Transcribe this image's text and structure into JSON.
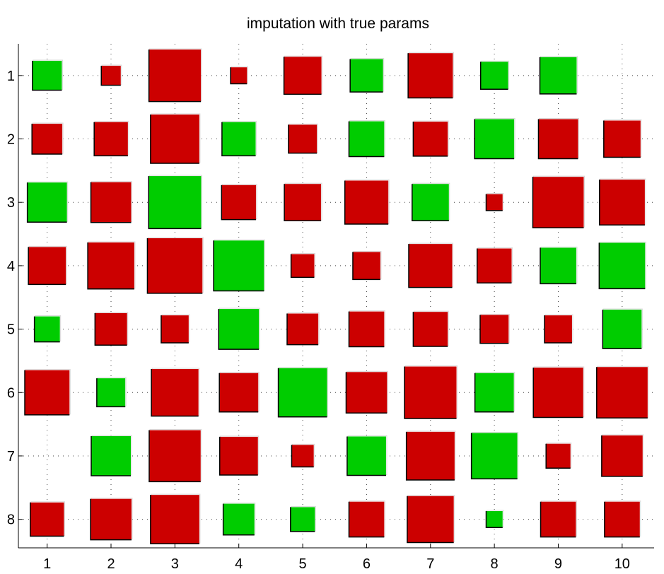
{
  "chart_data": {
    "type": "hinton",
    "title": "imputation with true params",
    "xlabel": "",
    "ylabel": "",
    "x_ticks": [
      "1",
      "2",
      "3",
      "4",
      "5",
      "6",
      "7",
      "8",
      "9",
      "10"
    ],
    "y_ticks": [
      "1",
      "2",
      "3",
      "4",
      "5",
      "6",
      "7",
      "8"
    ],
    "xlim": [
      0.55,
      10.5
    ],
    "ylim": [
      0.5,
      8.45
    ],
    "grid": true,
    "max_magnitude": 1.0,
    "sign_colors": {
      "positive": "#00cc00",
      "negative": "#cc0000"
    },
    "values": [
      [
        0.32,
        -0.14,
        -1.0,
        -0.1,
        -0.52,
        0.4,
        -0.74,
        0.28,
        0.5,
        0.0
      ],
      [
        -0.34,
        -0.42,
        -0.88,
        0.42,
        -0.3,
        0.46,
        -0.44,
        0.58,
        -0.58,
        -0.5
      ],
      [
        0.58,
        -0.6,
        1.02,
        -0.44,
        -0.5,
        -0.7,
        0.5,
        -0.1,
        -0.96,
        -0.76
      ],
      [
        -0.52,
        -0.8,
        -1.12,
        0.94,
        -0.2,
        -0.28,
        -0.7,
        -0.44,
        0.48,
        0.78
      ],
      [
        0.24,
        -0.38,
        -0.28,
        0.6,
        -0.36,
        -0.46,
        -0.44,
        -0.3,
        -0.28,
        0.56
      ],
      [
        -0.74,
        0.3,
        -0.82,
        -0.56,
        0.88,
        -0.62,
        -1.0,
        0.56,
        -0.92,
        -0.96
      ],
      [
        0.0,
        0.58,
        -0.98,
        -0.54,
        -0.18,
        0.56,
        -0.86,
        0.78,
        -0.22,
        -0.62
      ],
      [
        -0.42,
        -0.62,
        -0.88,
        0.36,
        0.22,
        -0.46,
        -0.8,
        0.1,
        -0.46,
        -0.46
      ]
    ]
  },
  "colors": {
    "axis": "#000000",
    "grid": "#444444",
    "background": "#ffffff",
    "outline": "#000000"
  }
}
